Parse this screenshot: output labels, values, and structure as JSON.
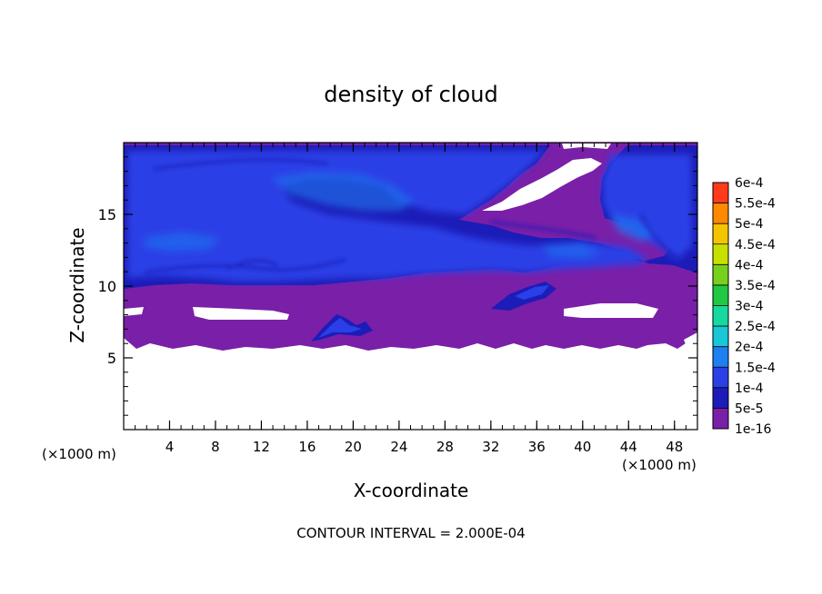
{
  "chart_data": {
    "type": "heatmap",
    "title": "density of cloud",
    "xlabel": "X-coordinate",
    "ylabel": "Z-coordinate",
    "x_unit": "(×1000 m)",
    "x_unit_right": "(×1000 m)",
    "xlim": [
      0,
      50
    ],
    "ylim": [
      0,
      20
    ],
    "x_ticks": [
      4,
      8,
      12,
      16,
      20,
      24,
      28,
      32,
      36,
      40,
      44,
      48
    ],
    "y_ticks": [
      5,
      10,
      15
    ],
    "x_minor_step": 1,
    "y_minor_step": 1,
    "colorbar": {
      "labels": [
        "1e-16",
        "5e-5",
        "1e-4",
        "1.5e-4",
        "2e-4",
        "2.5e-4",
        "3e-4",
        "3.5e-4",
        "4e-4",
        "4.5e-4",
        "5e-4",
        "5.5e-4",
        "6e-4"
      ],
      "colors": [
        "#7a1fa8",
        "#1c1cb8",
        "#2a3fe6",
        "#1e7ff2",
        "#19c7d6",
        "#17d9a0",
        "#22c744",
        "#77d11c",
        "#c8e000",
        "#f5c400",
        "#ff8a00",
        "#ff3b1a",
        "#ff9a8a"
      ]
    },
    "footer": "CONTOUR INTERVAL = 2.000E-04"
  }
}
